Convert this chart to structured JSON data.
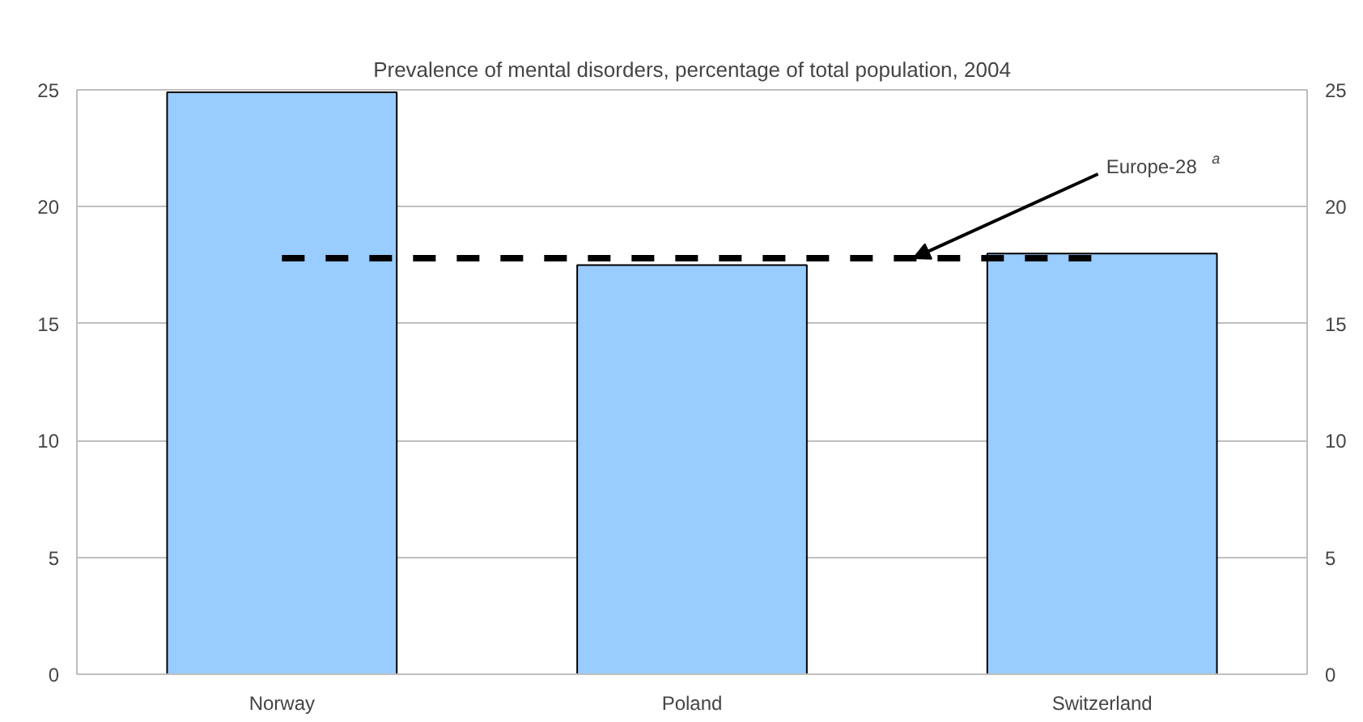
{
  "chart_data": {
    "type": "bar",
    "title": "Prevalence of mental disorders, percentage of total population, 2004",
    "categories": [
      "Norway",
      "Poland",
      "Switzerland"
    ],
    "values": [
      24.9,
      17.5,
      18.0
    ],
    "color": "#99ccff",
    "ylim": [
      0,
      25
    ],
    "yticks": [
      0,
      5,
      10,
      15,
      20,
      25
    ],
    "y2lim": [
      0,
      25
    ],
    "y2ticks": [
      0,
      5,
      10,
      15,
      20,
      25
    ],
    "grid": "y",
    "ref_lines": [
      {
        "axis": "y",
        "value": 17.8,
        "label": "Europe-28 $^{a}$",
        "line_style": "dashed",
        "color": "#000000"
      }
    ]
  }
}
